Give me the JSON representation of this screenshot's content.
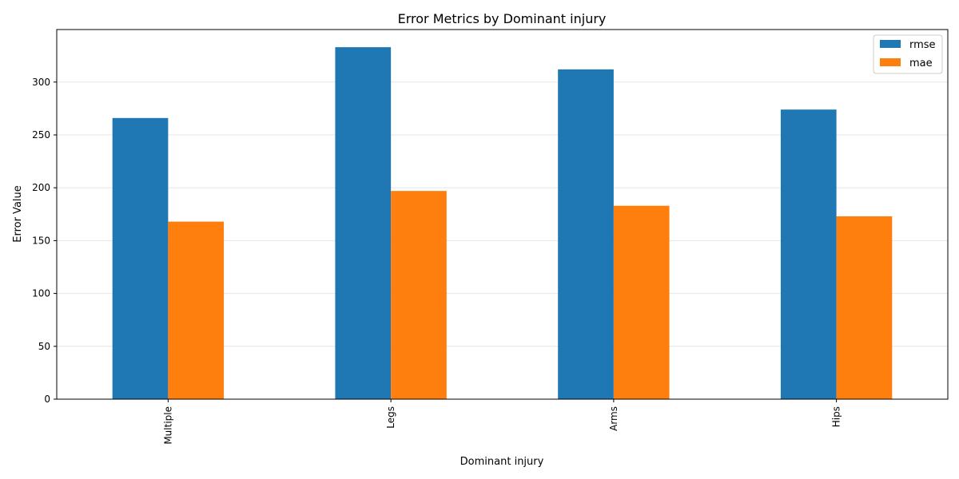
{
  "chart_data": {
    "type": "bar",
    "title": "Error Metrics by Dominant injury",
    "xlabel": "Dominant injury",
    "ylabel": "Error Value",
    "categories": [
      "Multiple",
      "Legs",
      "Arms",
      "Hips"
    ],
    "series": [
      {
        "name": "rmse",
        "values": [
          266,
          333,
          312,
          274
        ],
        "color": "#1f77b4"
      },
      {
        "name": "mae",
        "values": [
          168,
          197,
          183,
          173
        ],
        "color": "#ff7f0e"
      }
    ],
    "ylim": [
      0,
      349.7
    ],
    "yticks": [
      0,
      50,
      100,
      150,
      200,
      250,
      300
    ],
    "grid": "y",
    "legend_position": "top-right"
  }
}
